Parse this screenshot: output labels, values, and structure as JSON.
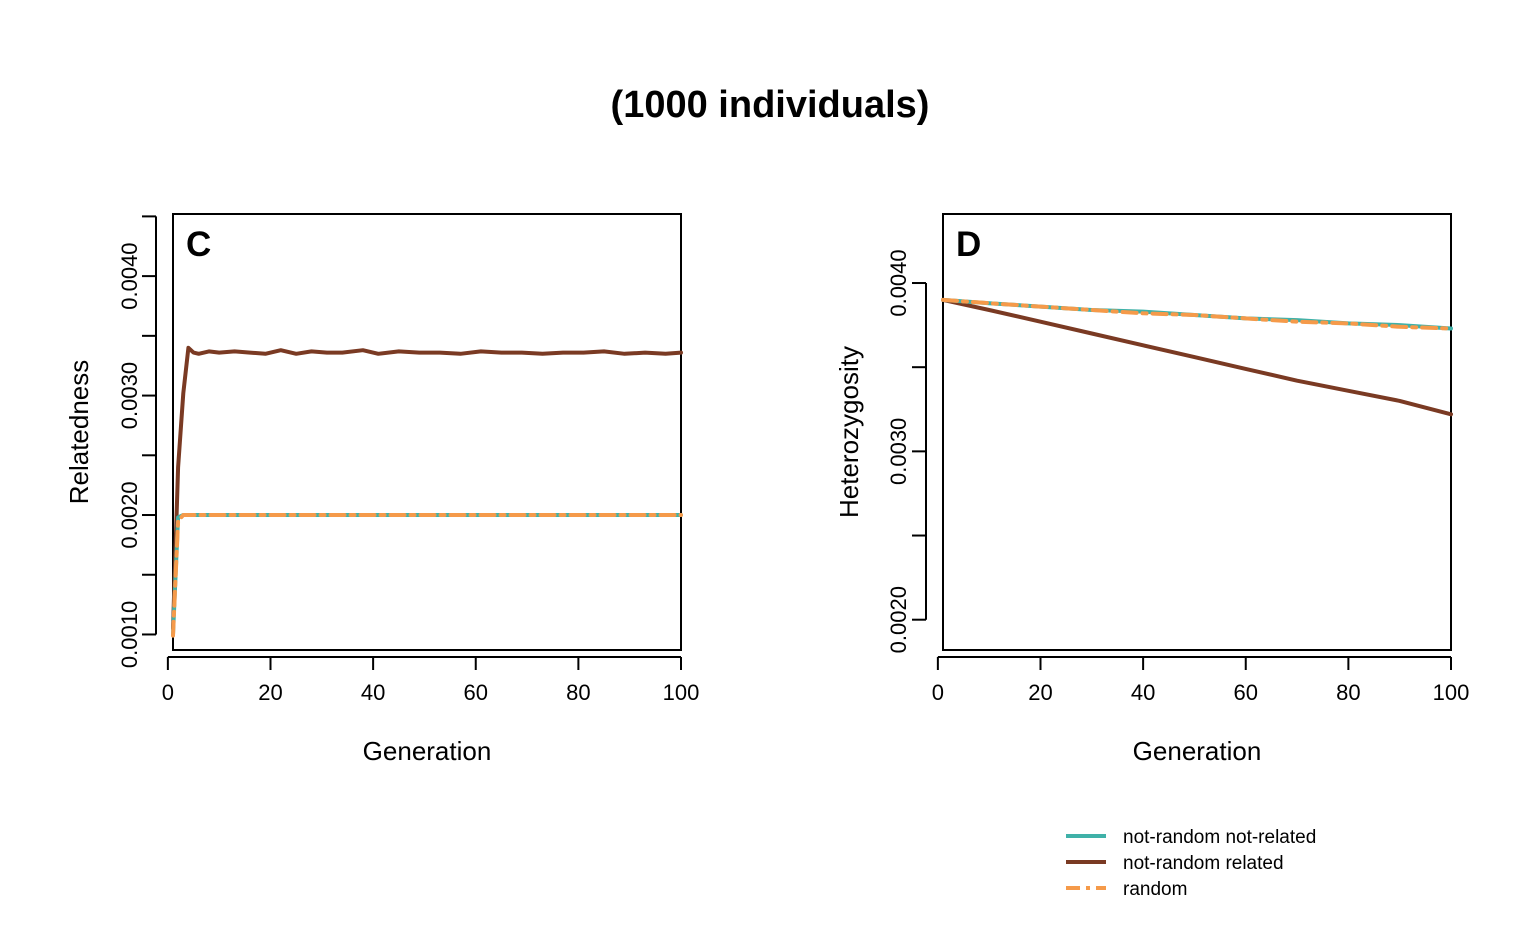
{
  "title": "(1000 individuals)",
  "colors": {
    "not_random_not_related": "#3fb1a8",
    "not_random_related": "#7a3a23",
    "random": "#f59a4a"
  },
  "legend": [
    {
      "key": "not_random_not_related",
      "label": "not-random not-related",
      "style": "solid"
    },
    {
      "key": "not_random_related",
      "label": "not-random related",
      "style": "solid"
    },
    {
      "key": "random",
      "label": "random",
      "style": "dashdot"
    }
  ],
  "chart_data": [
    {
      "type": "line",
      "panel_label": "C",
      "xlabel": "Generation",
      "ylabel": "Relatedness",
      "xlim": [
        1,
        100
      ],
      "ylim": [
        0.00087,
        0.00452
      ],
      "x_ticks": [
        0,
        20,
        40,
        60,
        80,
        100
      ],
      "x_tick_labels": [
        "0",
        "20",
        "40",
        "60",
        "80",
        "100"
      ],
      "y_ticks": [
        0.001,
        0.0015,
        0.002,
        0.0025,
        0.003,
        0.0035,
        0.004,
        0.0045
      ],
      "y_tick_labels": [
        "0.0010",
        "",
        "0.0020",
        "",
        "0.0030",
        "",
        "0.0040",
        ""
      ],
      "series": [
        {
          "key": "not_random_not_related",
          "name": "not-random not-related",
          "x": [
            1,
            2,
            3,
            5,
            10,
            20,
            40,
            60,
            80,
            100
          ],
          "values": [
            0.001,
            0.00198,
            0.002,
            0.002,
            0.002,
            0.002,
            0.002,
            0.002,
            0.002,
            0.002
          ]
        },
        {
          "key": "not_random_related",
          "name": "not-random related",
          "x": [
            1,
            2,
            3,
            4,
            5,
            6,
            8,
            10,
            13,
            16,
            19,
            22,
            25,
            28,
            31,
            34,
            38,
            41,
            45,
            49,
            53,
            57,
            61,
            65,
            69,
            73,
            77,
            81,
            85,
            89,
            93,
            97,
            100
          ],
          "values": [
            0.00105,
            0.0024,
            0.00302,
            0.0034,
            0.00336,
            0.00335,
            0.00337,
            0.00336,
            0.00337,
            0.00336,
            0.00335,
            0.00338,
            0.00335,
            0.00337,
            0.00336,
            0.00336,
            0.00338,
            0.00335,
            0.00337,
            0.00336,
            0.00336,
            0.00335,
            0.00337,
            0.00336,
            0.00336,
            0.00335,
            0.00336,
            0.00336,
            0.00337,
            0.00335,
            0.00336,
            0.00335,
            0.00336
          ]
        },
        {
          "key": "random",
          "name": "random",
          "x": [
            1,
            2,
            3,
            5,
            10,
            20,
            40,
            60,
            80,
            100
          ],
          "values": [
            0.00099,
            0.00195,
            0.002,
            0.002,
            0.002,
            0.002,
            0.002,
            0.002,
            0.002,
            0.002
          ]
        }
      ]
    },
    {
      "type": "line",
      "panel_label": "D",
      "xlabel": "Generation",
      "ylabel": "Heterozygosity",
      "xlim": [
        1,
        100
      ],
      "ylim": [
        0.00182,
        0.00441
      ],
      "x_ticks": [
        0,
        20,
        40,
        60,
        80,
        100
      ],
      "x_tick_labels": [
        "0",
        "20",
        "40",
        "60",
        "80",
        "100"
      ],
      "y_ticks": [
        0.002,
        0.0025,
        0.003,
        0.0035,
        0.004
      ],
      "y_tick_labels": [
        "0.0020",
        "",
        "0.0030",
        "",
        "0.0040"
      ],
      "series": [
        {
          "key": "not_random_not_related",
          "name": "not-random not-related",
          "x": [
            1,
            10,
            20,
            30,
            40,
            50,
            60,
            70,
            80,
            90,
            100
          ],
          "values": [
            0.0039,
            0.00388,
            0.00386,
            0.00384,
            0.00383,
            0.00381,
            0.00379,
            0.00378,
            0.00376,
            0.00375,
            0.00373
          ]
        },
        {
          "key": "not_random_related",
          "name": "not-random related",
          "x": [
            1,
            10,
            20,
            30,
            40,
            50,
            60,
            70,
            80,
            90,
            100
          ],
          "values": [
            0.0039,
            0.00384,
            0.00377,
            0.0037,
            0.00363,
            0.00356,
            0.00349,
            0.00342,
            0.00336,
            0.0033,
            0.00322
          ]
        },
        {
          "key": "random",
          "name": "random",
          "x": [
            1,
            10,
            20,
            30,
            40,
            50,
            60,
            70,
            80,
            90,
            100
          ],
          "values": [
            0.0039,
            0.00388,
            0.00386,
            0.00384,
            0.00382,
            0.00381,
            0.00379,
            0.00377,
            0.00376,
            0.00374,
            0.00373
          ]
        }
      ]
    }
  ]
}
